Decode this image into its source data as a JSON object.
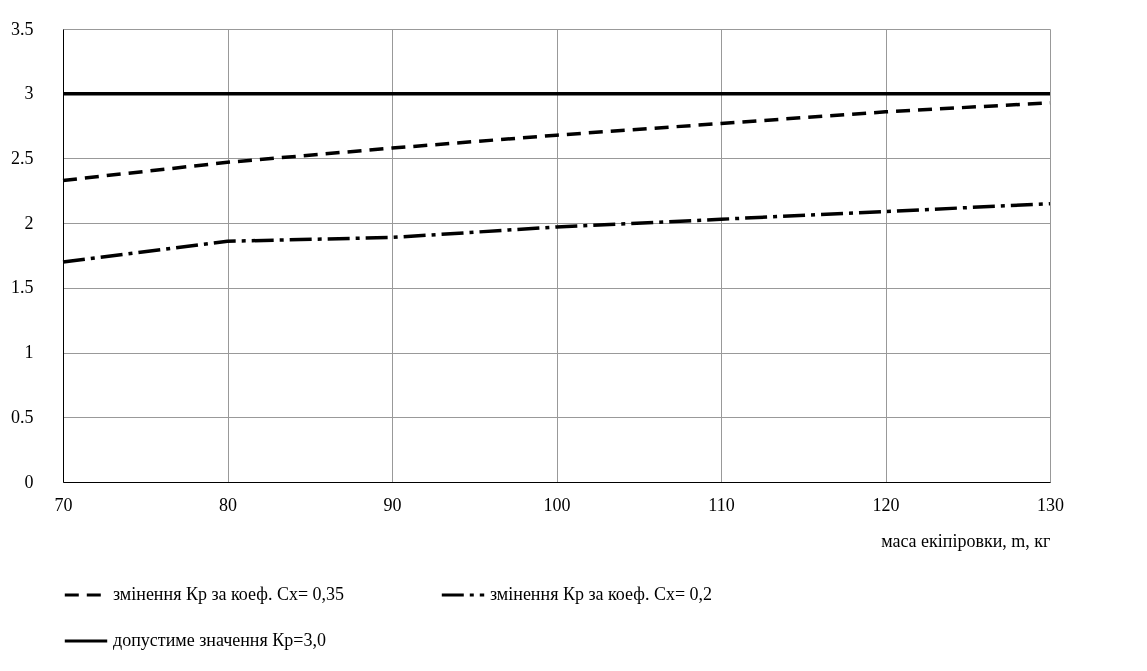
{
  "chart_data": {
    "type": "line",
    "xlabel": "маса екіпіровки, m, кг",
    "x": [
      70,
      80,
      90,
      100,
      110,
      120,
      130
    ],
    "series": [
      {
        "name": "змінення Кр за коеф. Сх= 0,35",
        "color": "#000000",
        "line_style": "dashed",
        "values": [
          2.33,
          2.47,
          2.58,
          2.68,
          2.77,
          2.86,
          2.93
        ]
      },
      {
        "name": "змінення Кр за коеф. Сх= 0,2",
        "color": "#000000",
        "line_style": "dashdot",
        "values": [
          1.7,
          1.86,
          1.89,
          1.97,
          2.03,
          2.09,
          2.15
        ]
      },
      {
        "name": "допустиме значення Кр=3,0",
        "color": "#000000",
        "line_style": "solid",
        "values": [
          3,
          3,
          3,
          3,
          3,
          3,
          3
        ]
      }
    ],
    "xlim": [
      70,
      130
    ],
    "xticks": [
      70,
      80,
      90,
      100,
      110,
      120,
      130
    ],
    "ylim": [
      0,
      3.5
    ],
    "yticks": [
      0,
      0.5,
      1,
      1.5,
      2,
      2.5,
      3,
      3.5
    ],
    "grid": true,
    "legend": "bottom",
    "marker": "none"
  }
}
